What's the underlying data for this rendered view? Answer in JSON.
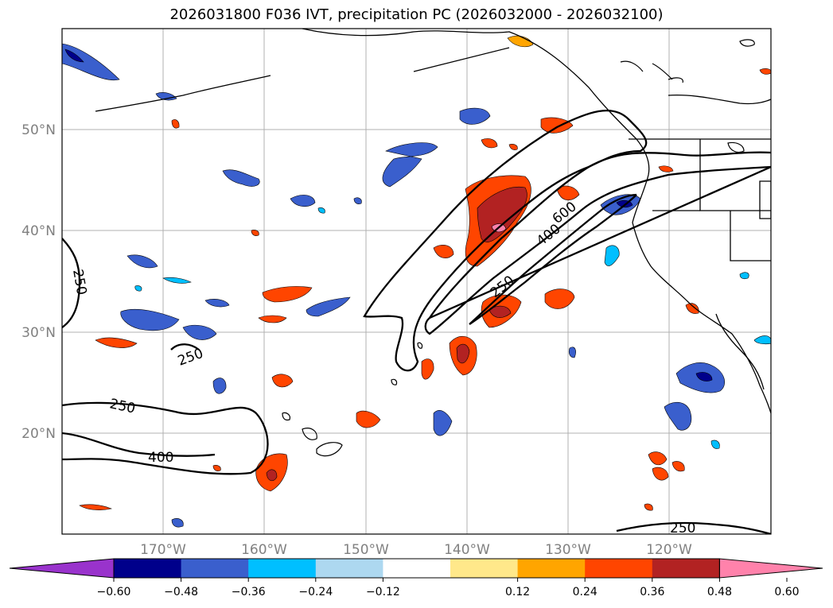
{
  "title": "2026031800 F036 IVT, precipitation PC (2026032000 - 2026032100)",
  "map": {
    "lat_labels": [
      "50°N",
      "40°N",
      "30°N",
      "20°N"
    ],
    "lon_labels": [
      "170°W",
      "160°W",
      "150°W",
      "140°W",
      "130°W",
      "120°W"
    ],
    "contour_labels": [
      "250",
      "250",
      "250",
      "400",
      "250",
      "400",
      "600",
      "250"
    ],
    "ivt_contour_levels": [
      250,
      400,
      600
    ]
  },
  "colorbar": {
    "ticks": [
      "−0.60",
      "−0.48",
      "−0.36",
      "−0.24",
      "−0.12",
      "0.12",
      "0.24",
      "0.36",
      "0.48",
      "0.60"
    ],
    "colors": [
      "#9933cc",
      "#00008b",
      "#3a5fcd",
      "#00bfff",
      "#add8f0",
      "#ffffff",
      "#ffe88a",
      "#ffa500",
      "#ff4500",
      "#b22222",
      "#ff82ab"
    ]
  }
}
